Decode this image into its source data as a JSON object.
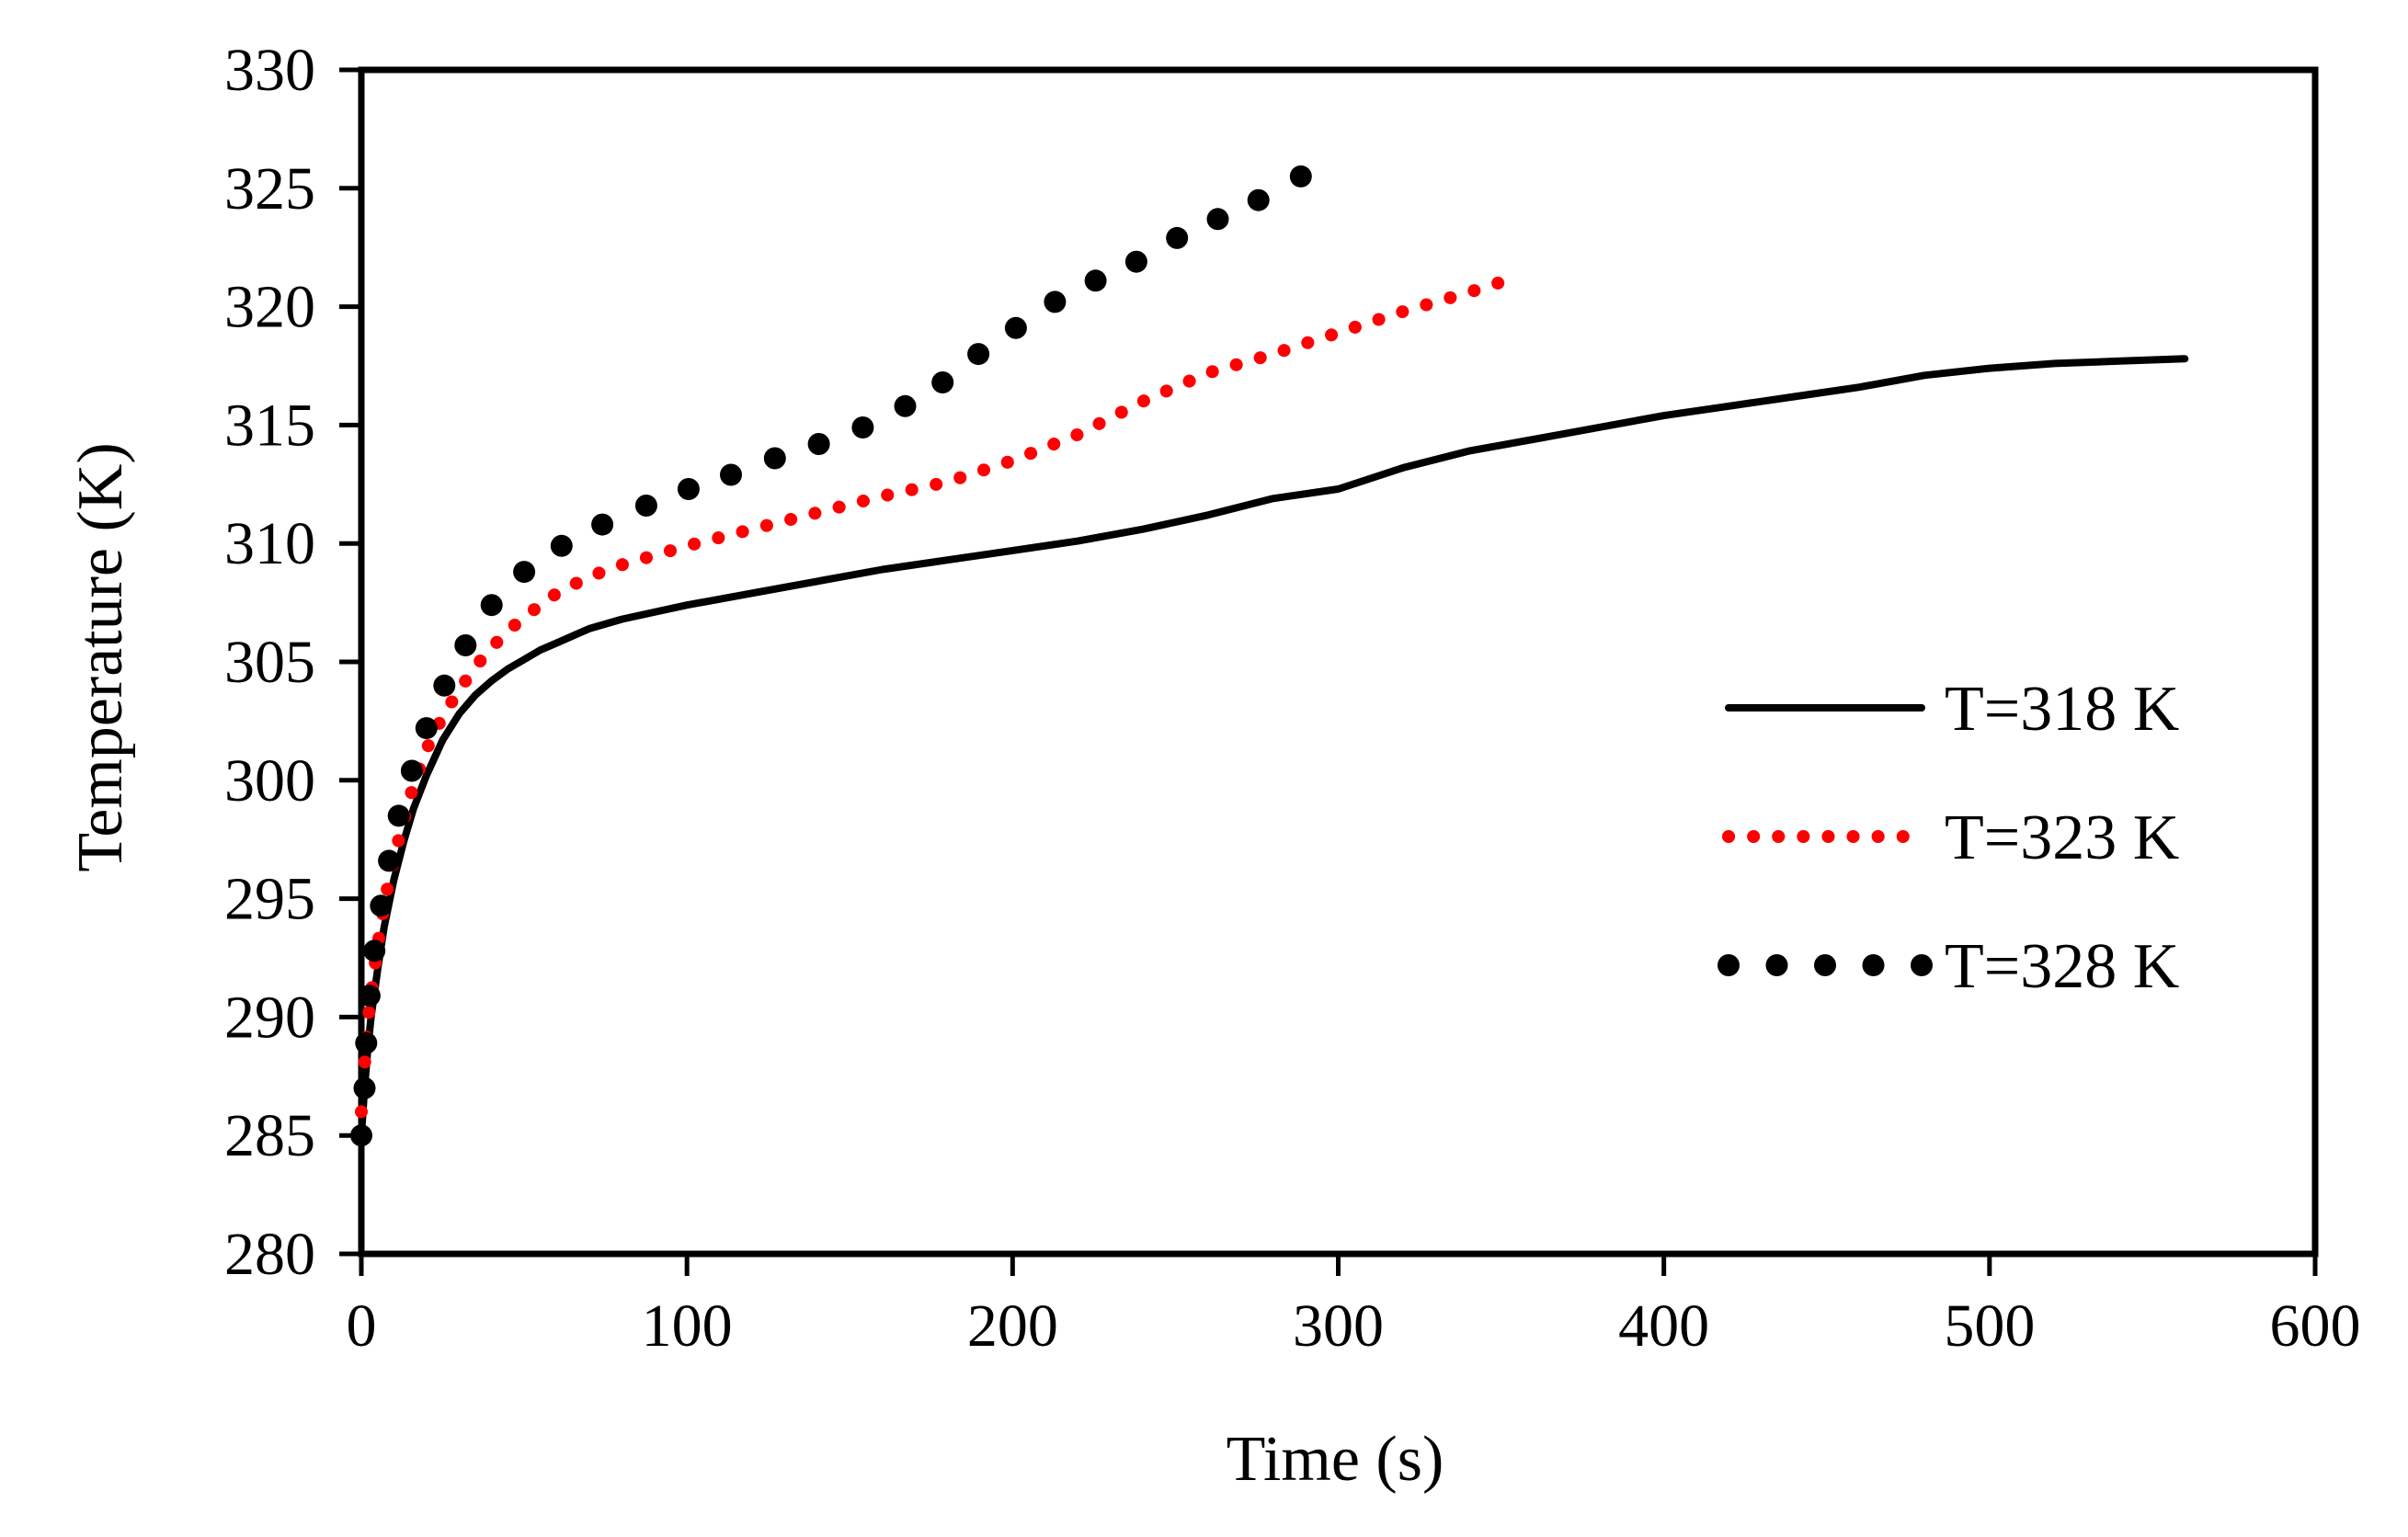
{
  "chart_data": {
    "type": "line",
    "title": "",
    "xlabel": "Time (s)",
    "ylabel": "Temperature (K)",
    "xlim": [
      0,
      600
    ],
    "ylim": [
      280,
      330
    ],
    "xticks": [
      0,
      100,
      200,
      300,
      400,
      500,
      600
    ],
    "yticks": [
      280,
      285,
      290,
      295,
      300,
      305,
      310,
      315,
      320,
      325,
      330
    ],
    "grid": false,
    "legend_position": "right",
    "series": [
      {
        "name": "T=318 K",
        "style": "solid",
        "color": "#000000",
        "x": [
          0,
          1,
          2,
          3,
          5,
          7,
          10,
          13,
          16,
          20,
          25,
          30,
          35,
          40,
          45,
          50,
          55,
          60,
          70,
          80,
          90,
          100,
          120,
          140,
          160,
          180,
          200,
          220,
          240,
          260,
          280,
          300,
          320,
          340,
          360,
          380,
          400,
          420,
          440,
          460,
          480,
          500,
          520,
          540,
          560
        ],
        "values": [
          285,
          287,
          288.7,
          290,
          292,
          293.8,
          295.8,
          297.4,
          298.8,
          300.2,
          301.7,
          302.8,
          303.6,
          304.2,
          304.7,
          305.1,
          305.5,
          305.8,
          306.4,
          306.8,
          307.1,
          307.4,
          307.9,
          308.4,
          308.9,
          309.3,
          309.7,
          310.1,
          310.6,
          311.2,
          311.9,
          312.3,
          313.2,
          313.9,
          314.4,
          314.9,
          315.4,
          315.8,
          316.2,
          316.6,
          317.1,
          317.4,
          317.6,
          317.7,
          317.8
        ]
      },
      {
        "name": "T=323 K",
        "style": "dotted",
        "color": "#ff0000",
        "x": [
          0,
          1,
          2,
          3,
          5,
          7,
          10,
          13,
          16,
          20,
          25,
          30,
          35,
          40,
          45,
          50,
          55,
          60,
          70,
          80,
          90,
          100,
          120,
          140,
          160,
          180,
          200,
          220,
          240,
          260,
          280,
          300,
          320,
          340,
          356
        ],
        "values": [
          286,
          288,
          289.8,
          291,
          293,
          294.8,
          296.7,
          298.3,
          299.8,
          301.3,
          302.7,
          303.8,
          304.8,
          305.6,
          306.3,
          306.9,
          307.4,
          307.9,
          308.6,
          309.1,
          309.5,
          309.9,
          310.6,
          311.3,
          312,
          312.6,
          313.5,
          314.6,
          316,
          317.2,
          318,
          318.9,
          319.8,
          320.6,
          321.3
        ]
      },
      {
        "name": "T=328 K",
        "style": "large-dots",
        "color": "#000000",
        "x": [
          0,
          1,
          1.5,
          2.5,
          4,
          6,
          8.5,
          11.5,
          15.5,
          20,
          25.5,
          32,
          40,
          50,
          61.5,
          74,
          87.5,
          100.5,
          113.5,
          127,
          140.5,
          154,
          167,
          178.5,
          189.5,
          201,
          213,
          225.5,
          238,
          250.5,
          263,
          275.5,
          288.5
        ],
        "values": [
          285,
          287,
          288.9,
          290.9,
          292.8,
          294.7,
          296.6,
          298.5,
          300.4,
          302.2,
          304,
          305.7,
          307.4,
          308.8,
          309.9,
          310.8,
          311.6,
          312.3,
          312.9,
          313.6,
          314.2,
          314.9,
          315.8,
          316.8,
          318,
          319.1,
          320.2,
          321.1,
          321.9,
          322.9,
          323.7,
          324.5,
          325.5
        ]
      }
    ]
  }
}
